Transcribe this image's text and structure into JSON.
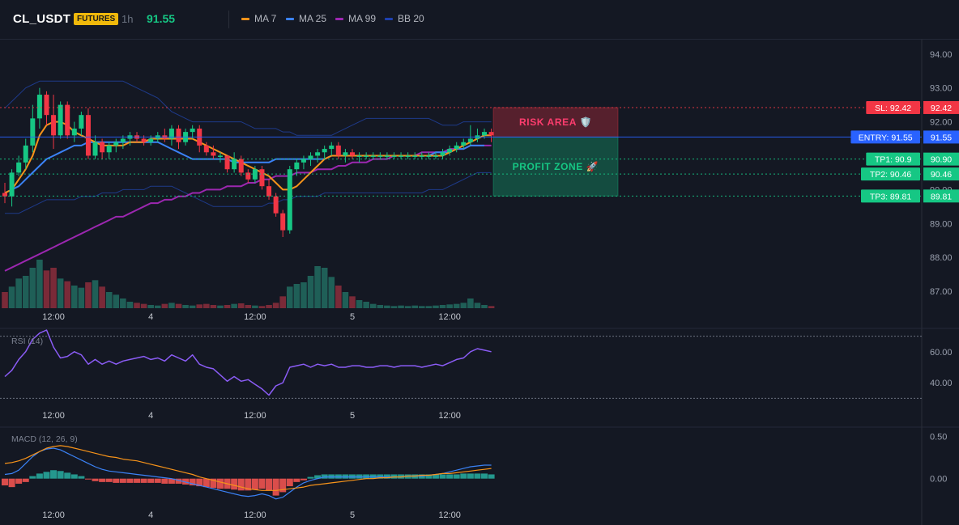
{
  "header": {
    "symbol": "CL_USDT",
    "badge": "FUTURES",
    "timeframe": "1h",
    "last_price": "91.55",
    "legend": [
      {
        "label": "MA 7",
        "color": "#f7931a"
      },
      {
        "label": "MA 25",
        "color": "#3b82f6"
      },
      {
        "label": "MA 99",
        "color": "#9c27b0"
      },
      {
        "label": "BB 20",
        "color": "#1e40af"
      }
    ]
  },
  "colors": {
    "up": "#16c784",
    "down": "#f23645",
    "background": "#141823",
    "rsi": "#8b5cf6",
    "macd": "#3b82f6",
    "signal": "#f7931a"
  },
  "chart_data": [
    {
      "type": "line",
      "name": "price",
      "ylim": [
        86.5,
        94.4
      ],
      "y_ticks": [
        "94.00",
        "93.00",
        "92.00",
        "90.00",
        "89.00",
        "88.00",
        "87.00"
      ],
      "x_ticks": [
        "12:00",
        "4",
        "12:00",
        "5",
        "12:00"
      ],
      "candles": [
        [
          89.9,
          90.2,
          89.6,
          89.8
        ],
        [
          89.8,
          90.6,
          89.5,
          90.5
        ],
        [
          90.5,
          91.0,
          90.4,
          90.8
        ],
        [
          90.8,
          91.5,
          90.6,
          91.3
        ],
        [
          91.3,
          92.5,
          91.1,
          92.1
        ],
        [
          92.1,
          93.0,
          91.8,
          92.8
        ],
        [
          92.8,
          92.9,
          91.9,
          92.2
        ],
        [
          92.2,
          92.8,
          91.2,
          91.6
        ],
        [
          91.6,
          92.6,
          91.5,
          92.5
        ],
        [
          92.5,
          92.6,
          91.5,
          91.6
        ],
        [
          91.6,
          92.0,
          91.4,
          91.8
        ],
        [
          91.8,
          92.3,
          91.6,
          92.2
        ],
        [
          92.2,
          92.4,
          90.9,
          91.0
        ],
        [
          91.0,
          91.6,
          90.9,
          91.4
        ],
        [
          91.4,
          91.5,
          90.9,
          91.1
        ],
        [
          91.1,
          91.4,
          90.9,
          91.3
        ],
        [
          91.3,
          91.5,
          91.1,
          91.4
        ],
        [
          91.4,
          91.6,
          91.2,
          91.5
        ],
        [
          91.5,
          91.7,
          91.3,
          91.6
        ],
        [
          91.6,
          91.7,
          91.4,
          91.5
        ],
        [
          91.5,
          91.6,
          91.3,
          91.4
        ],
        [
          91.4,
          91.6,
          91.3,
          91.5
        ],
        [
          91.5,
          91.7,
          91.4,
          91.6
        ],
        [
          91.6,
          91.8,
          91.4,
          91.5
        ],
        [
          91.5,
          91.9,
          91.3,
          91.8
        ],
        [
          91.8,
          91.9,
          91.2,
          91.4
        ],
        [
          91.4,
          91.8,
          91.3,
          91.7
        ],
        [
          91.7,
          91.9,
          91.5,
          91.8
        ],
        [
          91.8,
          91.9,
          91.1,
          91.3
        ],
        [
          91.3,
          91.4,
          91.0,
          91.1
        ],
        [
          91.1,
          91.3,
          90.9,
          91.0
        ],
        [
          91.0,
          91.1,
          90.8,
          91.0
        ],
        [
          91.0,
          91.0,
          90.5,
          90.6
        ],
        [
          90.6,
          91.1,
          90.5,
          90.9
        ],
        [
          90.9,
          91.0,
          90.4,
          90.5
        ],
        [
          90.5,
          90.6,
          90.2,
          90.3
        ],
        [
          90.3,
          90.7,
          90.2,
          90.6
        ],
        [
          90.6,
          90.7,
          90.0,
          90.1
        ],
        [
          90.1,
          90.3,
          89.7,
          89.8
        ],
        [
          89.8,
          89.9,
          89.2,
          89.3
        ],
        [
          89.3,
          89.4,
          88.6,
          88.8
        ],
        [
          88.8,
          90.7,
          88.7,
          90.6
        ],
        [
          90.6,
          90.9,
          90.4,
          90.8
        ],
        [
          90.8,
          91.0,
          90.6,
          90.9
        ],
        [
          90.9,
          91.1,
          90.7,
          91.0
        ],
        [
          91.0,
          91.2,
          90.8,
          91.1
        ],
        [
          91.1,
          91.3,
          90.9,
          91.2
        ],
        [
          91.2,
          91.4,
          91.0,
          91.3
        ],
        [
          91.3,
          91.4,
          90.9,
          91.0
        ],
        [
          91.0,
          91.2,
          90.8,
          91.1
        ],
        [
          91.1,
          91.2,
          90.9,
          91.0
        ],
        [
          91.0,
          91.1,
          90.8,
          91.0
        ],
        [
          91.0,
          91.1,
          90.9,
          91.0
        ],
        [
          91.0,
          91.1,
          90.9,
          91.0
        ],
        [
          91.0,
          91.1,
          90.9,
          91.0
        ],
        [
          91.0,
          91.1,
          90.9,
          91.0
        ],
        [
          91.0,
          91.1,
          90.9,
          91.0
        ],
        [
          91.0,
          91.1,
          90.9,
          91.0
        ],
        [
          91.0,
          91.1,
          90.9,
          91.0
        ],
        [
          91.0,
          91.1,
          90.9,
          91.0
        ],
        [
          91.0,
          91.1,
          90.9,
          91.0
        ],
        [
          91.0,
          91.1,
          90.9,
          91.0
        ],
        [
          91.0,
          91.1,
          90.9,
          91.0
        ],
        [
          91.0,
          91.2,
          90.9,
          91.1
        ],
        [
          91.1,
          91.3,
          91.0,
          91.2
        ],
        [
          91.2,
          91.4,
          91.1,
          91.3
        ],
        [
          91.3,
          91.5,
          91.2,
          91.4
        ],
        [
          91.4,
          91.9,
          91.3,
          91.5
        ],
        [
          91.5,
          91.8,
          91.4,
          91.6
        ],
        [
          91.6,
          91.8,
          91.5,
          91.7
        ],
        [
          91.7,
          91.8,
          91.4,
          91.6
        ]
      ],
      "ma7": [
        89.9,
        90.0,
        90.3,
        90.6,
        91.0,
        91.6,
        91.9,
        92.0,
        92.0,
        91.9,
        91.7,
        91.6,
        91.5,
        91.4,
        91.3,
        91.3,
        91.3,
        91.3,
        91.4,
        91.4,
        91.4,
        91.5,
        91.5,
        91.5,
        91.5,
        91.5,
        91.5,
        91.5,
        91.4,
        91.3,
        91.2,
        91.1,
        91.0,
        90.9,
        90.8,
        90.7,
        90.6,
        90.5,
        90.4,
        90.2,
        90.0,
        90.0,
        90.1,
        90.3,
        90.5,
        90.7,
        90.9,
        91.0,
        91.0,
        91.0,
        91.0,
        91.0,
        91.0,
        91.0,
        91.0,
        91.0,
        91.0,
        91.0,
        91.0,
        91.0,
        91.0,
        91.0,
        91.0,
        91.0,
        91.1,
        91.2,
        91.3,
        91.4,
        91.5,
        91.6,
        91.6
      ],
      "ma25": [
        89.9,
        90.0,
        90.1,
        90.3,
        90.5,
        90.7,
        90.9,
        91.0,
        91.1,
        91.2,
        91.3,
        91.3,
        91.4,
        91.4,
        91.4,
        91.4,
        91.4,
        91.4,
        91.4,
        91.4,
        91.4,
        91.4,
        91.4,
        91.3,
        91.2,
        91.1,
        91.0,
        90.9,
        90.9,
        90.9,
        90.9,
        90.9,
        90.9,
        90.8,
        90.8,
        90.8,
        90.8,
        90.8,
        90.8,
        90.9,
        90.9,
        90.9,
        90.9,
        90.9,
        90.9,
        90.9,
        90.9,
        91.0,
        91.0,
        91.0,
        91.0,
        91.0,
        91.0,
        91.0,
        91.0,
        91.0,
        91.0,
        91.0,
        91.0,
        91.0,
        91.0,
        91.0,
        91.1,
        91.1,
        91.1,
        91.2,
        91.2,
        91.3,
        91.3,
        91.3
      ],
      "ma99": [
        87.6,
        87.7,
        87.8,
        87.9,
        88.0,
        88.1,
        88.2,
        88.3,
        88.4,
        88.5,
        88.6,
        88.7,
        88.8,
        88.9,
        89.0,
        89.1,
        89.2,
        89.2,
        89.3,
        89.4,
        89.5,
        89.6,
        89.6,
        89.7,
        89.7,
        89.8,
        89.8,
        89.9,
        89.9,
        90.0,
        90.0,
        90.0,
        90.1,
        90.1,
        90.1,
        90.2,
        90.2,
        90.3,
        90.3,
        90.4,
        90.4,
        90.4,
        90.5,
        90.5,
        90.5,
        90.6,
        90.6,
        90.6,
        90.7,
        90.7,
        90.8,
        90.8,
        90.8,
        90.9,
        90.9,
        90.9,
        91.0,
        91.0,
        91.0,
        91.0,
        91.1,
        91.1,
        91.1,
        91.1,
        91.2,
        91.2,
        91.2,
        91.3,
        91.3,
        91.3,
        91.3
      ],
      "bb_upper": [
        92.4,
        92.6,
        92.8,
        93.0,
        93.1,
        93.2,
        93.2,
        93.2,
        93.2,
        93.2,
        93.2,
        93.2,
        93.2,
        93.2,
        93.2,
        93.2,
        93.2,
        93.2,
        93.1,
        93.0,
        92.9,
        92.8,
        92.7,
        92.5,
        92.3,
        92.2,
        92.1,
        92.0,
        92.0,
        92.0,
        92.0,
        92.0,
        92.0,
        92.0,
        92.0,
        91.9,
        91.8,
        91.8,
        91.8,
        91.8,
        91.7,
        91.7,
        91.6,
        91.6,
        91.6,
        91.6,
        91.6,
        91.6,
        91.7,
        91.8,
        91.9,
        92.0,
        92.1,
        92.1,
        92.1,
        92.1,
        92.1,
        92.1,
        92.1,
        92.1,
        92.1,
        92.1,
        92.0,
        91.9,
        91.9,
        91.9,
        92.0,
        92.0,
        92.0,
        92.0,
        92.0
      ],
      "bb_lower": [
        89.3,
        89.3,
        89.3,
        89.4,
        89.5,
        89.6,
        89.7,
        89.7,
        89.7,
        89.7,
        89.7,
        89.8,
        89.8,
        89.8,
        89.9,
        89.9,
        89.9,
        90.0,
        90.0,
        90.0,
        90.0,
        90.1,
        90.1,
        90.1,
        90.1,
        90.0,
        89.9,
        89.8,
        89.7,
        89.6,
        89.5,
        89.5,
        89.5,
        89.5,
        89.5,
        89.5,
        89.5,
        89.5,
        89.6,
        89.6,
        89.7,
        89.7,
        89.8,
        89.8,
        89.8,
        89.8,
        89.9,
        89.9,
        89.9,
        89.9,
        89.9,
        89.9,
        89.9,
        89.9,
        89.9,
        89.9,
        89.9,
        89.9,
        89.9,
        89.9,
        89.9,
        90.0,
        90.0,
        90.0,
        90.1,
        90.2,
        90.3,
        90.4,
        90.5,
        90.5,
        90.5
      ],
      "volume": [
        30,
        40,
        55,
        60,
        75,
        90,
        70,
        75,
        55,
        50,
        42,
        38,
        48,
        52,
        40,
        30,
        25,
        18,
        12,
        10,
        8,
        6,
        5,
        8,
        10,
        8,
        6,
        5,
        7,
        8,
        6,
        5,
        6,
        8,
        9,
        6,
        5,
        4,
        6,
        10,
        22,
        40,
        45,
        48,
        60,
        78,
        75,
        58,
        42,
        30,
        22,
        15,
        12,
        8,
        6,
        5,
        4,
        5,
        4,
        5,
        4,
        4,
        5,
        6,
        7,
        8,
        10,
        18,
        10,
        6,
        4
      ],
      "levels": [
        {
          "label": "SL: 92.42",
          "value": "92.42",
          "y": 92.42,
          "color": "#f23645"
        },
        {
          "label": "ENTRY: 91.55",
          "value": "91.55",
          "y": 91.55,
          "color": "#2962ff"
        },
        {
          "label": "TP1: 90.9",
          "value": "90.90",
          "y": 90.9,
          "color": "#16c784"
        },
        {
          "label": "TP2: 90.46",
          "value": "90.46",
          "y": 90.46,
          "color": "#16c784"
        },
        {
          "label": "TP3: 89.81",
          "value": "89.81",
          "y": 89.81,
          "color": "#16c784"
        }
      ],
      "zones": [
        {
          "label": "RISK AREA 🛡️",
          "from": 92.42,
          "to": 91.55,
          "color": "#f23645"
        },
        {
          "label": "PROFIT ZONE 🚀",
          "from": 91.55,
          "to": 89.81,
          "color": "#16c784"
        }
      ]
    },
    {
      "type": "line",
      "name": "RSI",
      "title": "RSI (14)",
      "ylim": [
        26,
        74
      ],
      "y_ticks": [
        "60.00",
        "40.00"
      ],
      "x_ticks": [
        "12:00",
        "4",
        "12:00",
        "5",
        "12:00"
      ],
      "values": [
        44,
        48,
        55,
        60,
        68,
        72,
        74,
        63,
        56,
        57,
        60,
        58,
        52,
        55,
        52,
        54,
        52,
        54,
        55,
        56,
        57,
        55,
        56,
        54,
        58,
        56,
        54,
        58,
        52,
        50,
        49,
        45,
        41,
        44,
        41,
        42,
        39,
        36,
        32,
        38,
        40,
        50,
        51,
        52,
        50,
        52,
        51,
        52,
        50,
        50,
        51,
        51,
        50,
        50,
        51,
        51,
        50,
        51,
        51,
        51,
        50,
        51,
        52,
        51,
        53,
        55,
        56,
        60,
        62,
        61,
        60
      ]
    },
    {
      "type": "bar",
      "name": "MACD",
      "title": "MACD (12, 26, 9)",
      "ylim": [
        -0.29,
        0.59
      ],
      "y_ticks": [
        "0.50",
        "0.00"
      ],
      "x_ticks": [
        "12:00",
        "4",
        "12:00",
        "5",
        "12:00"
      ],
      "macd": [
        0.05,
        0.06,
        0.1,
        0.18,
        0.26,
        0.32,
        0.35,
        0.36,
        0.34,
        0.3,
        0.26,
        0.22,
        0.18,
        0.14,
        0.11,
        0.09,
        0.08,
        0.07,
        0.06,
        0.05,
        0.04,
        0.03,
        0.02,
        0.01,
        0.0,
        -0.02,
        -0.04,
        -0.06,
        -0.08,
        -0.1,
        -0.12,
        -0.14,
        -0.16,
        -0.18,
        -0.2,
        -0.21,
        -0.2,
        -0.18,
        -0.2,
        -0.24,
        -0.22,
        -0.16,
        -0.1,
        -0.05,
        -0.02,
        0.0,
        0.02,
        0.02,
        0.02,
        0.02,
        0.02,
        0.02,
        0.02,
        0.02,
        0.02,
        0.02,
        0.02,
        0.02,
        0.03,
        0.03,
        0.03,
        0.04,
        0.05,
        0.06,
        0.08,
        0.1,
        0.12,
        0.14,
        0.15,
        0.16,
        0.16
      ],
      "signal": [
        0.18,
        0.19,
        0.21,
        0.24,
        0.28,
        0.32,
        0.36,
        0.38,
        0.39,
        0.38,
        0.36,
        0.34,
        0.32,
        0.3,
        0.28,
        0.26,
        0.25,
        0.23,
        0.22,
        0.21,
        0.19,
        0.17,
        0.15,
        0.13,
        0.11,
        0.09,
        0.07,
        0.05,
        0.02,
        0.0,
        -0.02,
        -0.04,
        -0.06,
        -0.08,
        -0.1,
        -0.12,
        -0.13,
        -0.14,
        -0.14,
        -0.14,
        -0.13,
        -0.12,
        -0.11,
        -0.1,
        -0.08,
        -0.07,
        -0.06,
        -0.05,
        -0.04,
        -0.03,
        -0.02,
        -0.01,
        0.0,
        0.0,
        0.01,
        0.01,
        0.02,
        0.02,
        0.03,
        0.03,
        0.04,
        0.04,
        0.05,
        0.06,
        0.06,
        0.07,
        0.08,
        0.09,
        0.1,
        0.11,
        0.12
      ],
      "hist": [
        -0.08,
        -0.1,
        -0.06,
        -0.04,
        0.03,
        0.06,
        0.08,
        0.1,
        0.09,
        0.07,
        0.05,
        0.03,
        -0.01,
        -0.03,
        -0.04,
        -0.04,
        -0.05,
        -0.05,
        -0.05,
        -0.05,
        -0.05,
        -0.05,
        -0.05,
        -0.06,
        -0.06,
        -0.06,
        -0.07,
        -0.08,
        -0.09,
        -0.1,
        -0.11,
        -0.12,
        -0.12,
        -0.13,
        -0.14,
        -0.14,
        -0.13,
        -0.12,
        -0.14,
        -0.2,
        -0.16,
        -0.09,
        -0.04,
        -0.02,
        0.02,
        0.04,
        0.05,
        0.05,
        0.05,
        0.05,
        0.05,
        0.05,
        0.05,
        0.05,
        0.05,
        0.05,
        0.05,
        0.05,
        0.05,
        0.05,
        0.05,
        0.05,
        0.05,
        0.05,
        0.05,
        0.05,
        0.06,
        0.06,
        0.06,
        0.06,
        0.05
      ]
    }
  ]
}
